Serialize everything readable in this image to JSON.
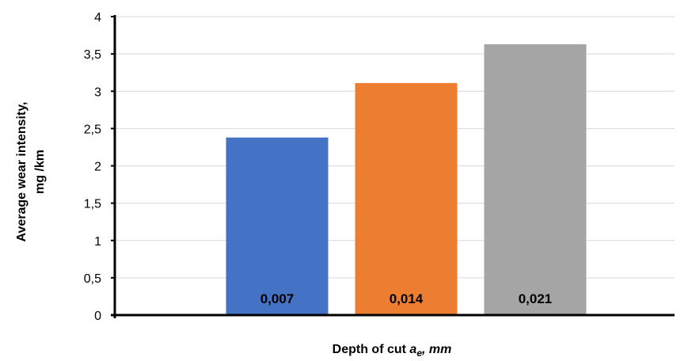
{
  "chart_data": {
    "type": "bar",
    "categories": [
      "0,007",
      "0,014",
      "0,021"
    ],
    "values": [
      2.38,
      3.11,
      3.63
    ],
    "colors": [
      "#4472C4",
      "#ED7D31",
      "#A5A5A5"
    ],
    "title": "",
    "ylabel_line1": "Average wear intensity,",
    "ylabel_line2": "mg /km",
    "xlabel_prefix": "Depth of cut ",
    "xlabel_var": "a",
    "xlabel_sub": "e",
    "xlabel_suffix": ", mm",
    "ylim": [
      0,
      4
    ],
    "yticks": [
      "0",
      "0,5",
      "1",
      "1,5",
      "2",
      "2,5",
      "3",
      "3,5",
      "4"
    ],
    "grid": true
  }
}
